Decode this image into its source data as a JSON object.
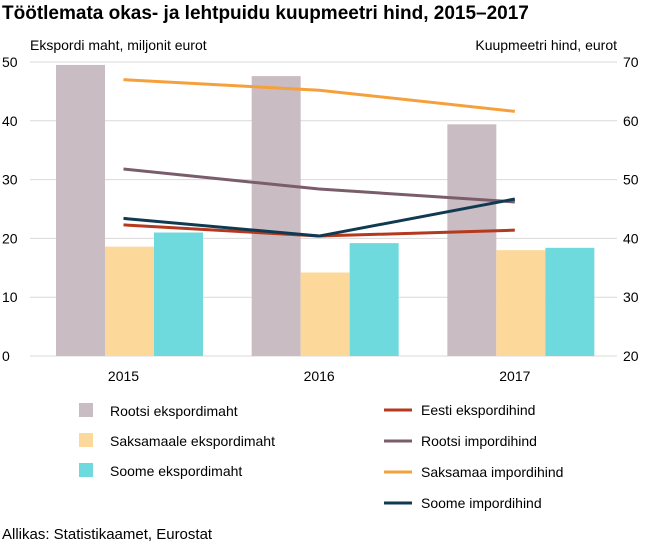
{
  "chart_data": {
    "type": "bar+line",
    "title": "Töötlemata okas- ja lehtpuidu kuupmeetri hind, 2015–2017",
    "ylabel_left": "Ekspordi maht, miljonit eurot",
    "ylabel_right": "Kuupmeetri hind, eurot",
    "categories": [
      "2015",
      "2016",
      "2017"
    ],
    "ylim_left": [
      0,
      50
    ],
    "yticks_left": [
      "0",
      "10",
      "20",
      "30",
      "40",
      "50"
    ],
    "ylim_right": [
      20,
      70
    ],
    "yticks_right": [
      "20",
      "30",
      "40",
      "50",
      "60",
      "70"
    ],
    "grid": "horizontal",
    "bar_series": [
      {
        "name": "Rootsi ekspordimaht",
        "color": "#cabcc3",
        "values": [
          49.5,
          47.6,
          39.4
        ]
      },
      {
        "name": "Saksamaale ekspordimaht",
        "color": "#fdd89b",
        "values": [
          18.6,
          14.2,
          18.0
        ]
      },
      {
        "name": "Soome ekspordimaht",
        "color": "#6fdadd",
        "values": [
          21.0,
          19.2,
          18.4
        ]
      }
    ],
    "line_series": [
      {
        "name": "Eesti ekspordihind",
        "color": "#b5391f",
        "values": [
          42.3,
          40.4,
          41.4
        ]
      },
      {
        "name": "Rootsi impordihind",
        "color": "#7a5d6a",
        "values": [
          51.8,
          48.4,
          46.2
        ]
      },
      {
        "name": "Saksamaa impordihind",
        "color": "#f6a03c",
        "values": [
          67.0,
          65.2,
          61.6
        ]
      },
      {
        "name": "Soome impordihind",
        "color": "#0f3a52",
        "values": [
          43.4,
          40.4,
          46.7
        ]
      }
    ]
  },
  "source": "Allikas: Statistikaamet, Eurostat"
}
